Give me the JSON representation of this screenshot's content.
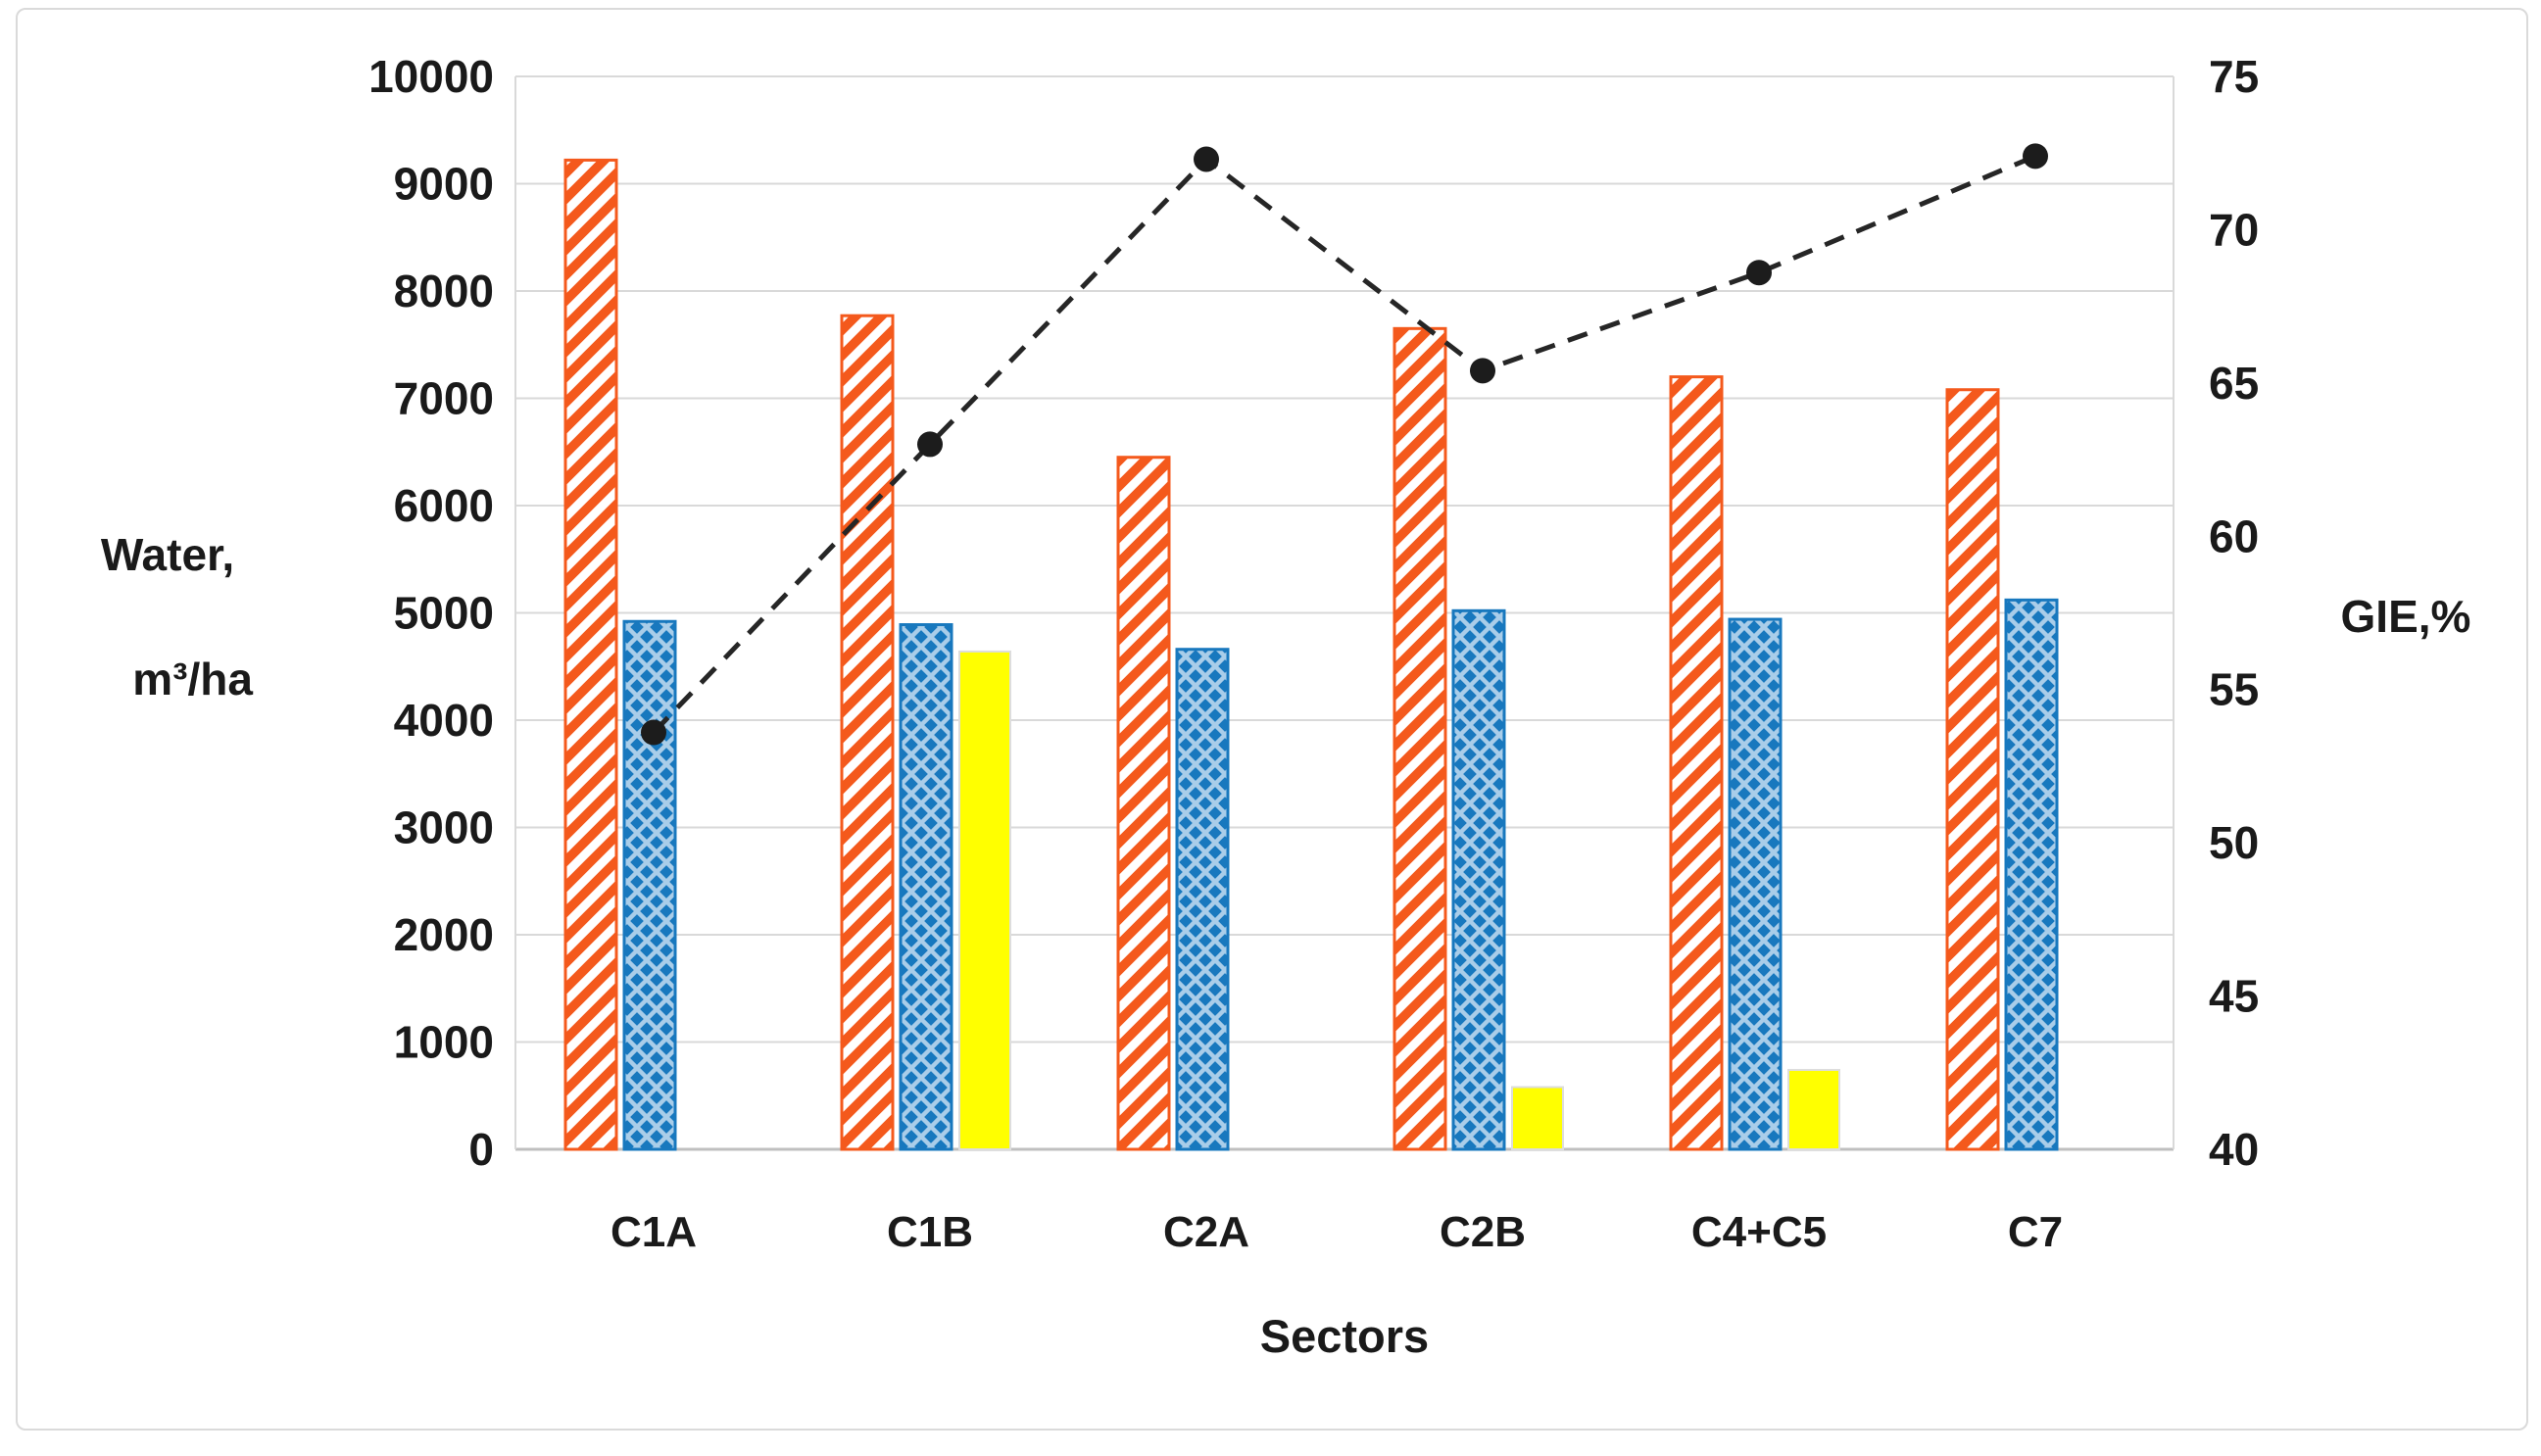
{
  "figure": {
    "kind": "combo bar + line chart",
    "background": "#FFFFFF",
    "frame_border": "#DADADA",
    "legend": "none"
  },
  "chart_data": {
    "type": "bar",
    "subtype": "clustered-bars-with-dashed-line-overlay",
    "categories": [
      "C1A",
      "C1B",
      "C2A",
      "C2B",
      "C4+C5",
      "C7"
    ],
    "series": [
      {
        "name": "water-orange-diagonal-hatch-bar",
        "axis": "left",
        "type": "bar",
        "values": [
          9220,
          7770,
          6450,
          7650,
          7200,
          7080
        ]
      },
      {
        "name": "water-blue-crosshatch-bar",
        "axis": "left",
        "type": "bar",
        "values": [
          4920,
          4890,
          4660,
          5020,
          4940,
          5120
        ]
      },
      {
        "name": "water-yellow-solid-bar",
        "axis": "left",
        "type": "bar",
        "values": [
          null,
          4640,
          null,
          580,
          740,
          null
        ]
      },
      {
        "name": "GIE-dashed-line",
        "axis": "right",
        "type": "line",
        "values": [
          53.6,
          63.0,
          72.3,
          65.4,
          68.6,
          72.4
        ]
      }
    ],
    "xlabel": "Sectors",
    "ylabel_left_lines": [
      "Water,",
      "m³/ha"
    ],
    "ylabel_right": "GIE,%",
    "ylim_left": [
      0,
      10000
    ],
    "ylim_right": [
      40,
      75
    ],
    "left_ticks": [
      0,
      1000,
      2000,
      3000,
      4000,
      5000,
      6000,
      7000,
      8000,
      9000,
      10000
    ],
    "right_ticks": [
      40,
      45,
      50,
      55,
      60,
      65,
      70,
      75
    ],
    "grid": "horizontal light gray lines every 1000 (left axis)",
    "legend_position": "none",
    "colors": {
      "orange": "#F4591C",
      "blue": "#1878BE",
      "blue_lattice": "#A9CDE9",
      "yellow": "#FFFF00",
      "line": "#262626",
      "grid": "#D9D9D9",
      "axis_line": "#BFBFBF",
      "text": "#1A1A1A"
    }
  }
}
